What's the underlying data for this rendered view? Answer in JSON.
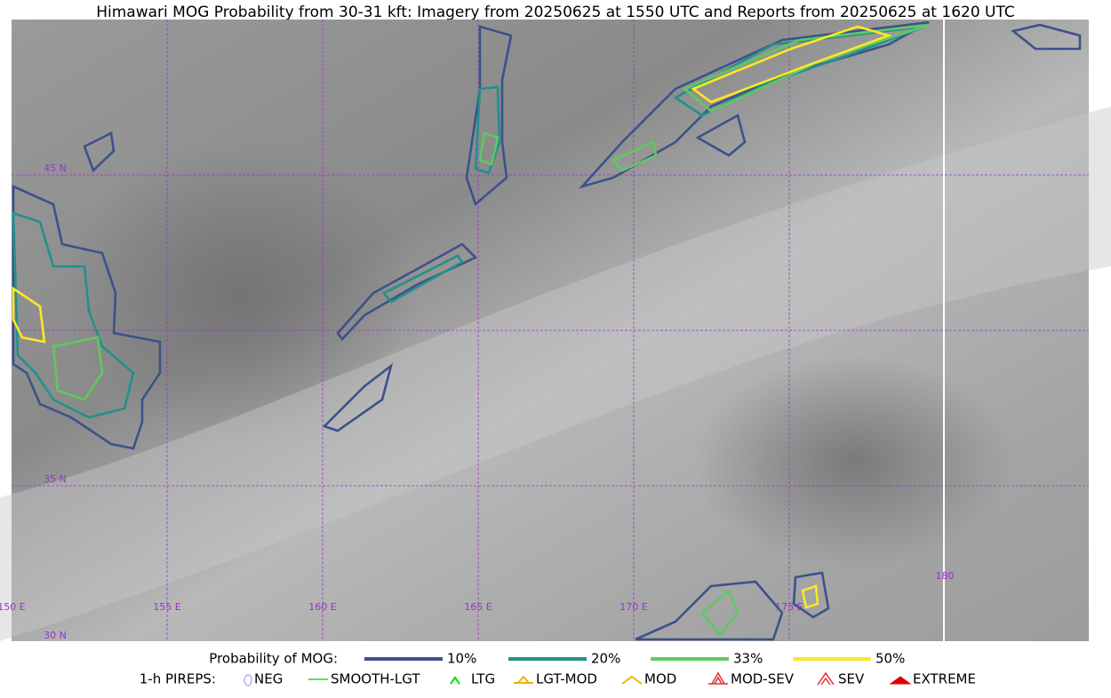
{
  "title": "Himawari MOG Probability from 30-31 kft: Imagery from 20250625 at 1550 UTC and Reports from 20250625 at 1620 UTC",
  "map": {
    "lat_labels": [
      "45 N",
      "35 N",
      "30 N"
    ],
    "lon_labels": [
      "150 E",
      "155 E",
      "160 E",
      "165 E",
      "170 E",
      "175 E",
      "180"
    ]
  },
  "legend": {
    "probability": {
      "label": "Probability of MOG:",
      "items": [
        {
          "label": "10%",
          "color": "#3b528b"
        },
        {
          "label": "20%",
          "color": "#21918c"
        },
        {
          "label": "33%",
          "color": "#5ec962"
        },
        {
          "label": "50%",
          "color": "#fde725"
        }
      ]
    },
    "pireps": {
      "label": "1-h PIREPS:",
      "items": [
        {
          "label": "NEG",
          "color": "#b0b0ff"
        },
        {
          "label": "SMOOTH-LGT",
          "color": "#33cc33"
        },
        {
          "label": "LTG",
          "color": "#00dd00"
        },
        {
          "label": "LGT-MOD",
          "color": "#f0b400"
        },
        {
          "label": "MOD",
          "color": "#f0b400"
        },
        {
          "label": "MOD-SEV",
          "color": "#e03030"
        },
        {
          "label": "SEV",
          "color": "#e03030"
        },
        {
          "label": "EXTREME",
          "color": "#e00000"
        }
      ]
    }
  }
}
